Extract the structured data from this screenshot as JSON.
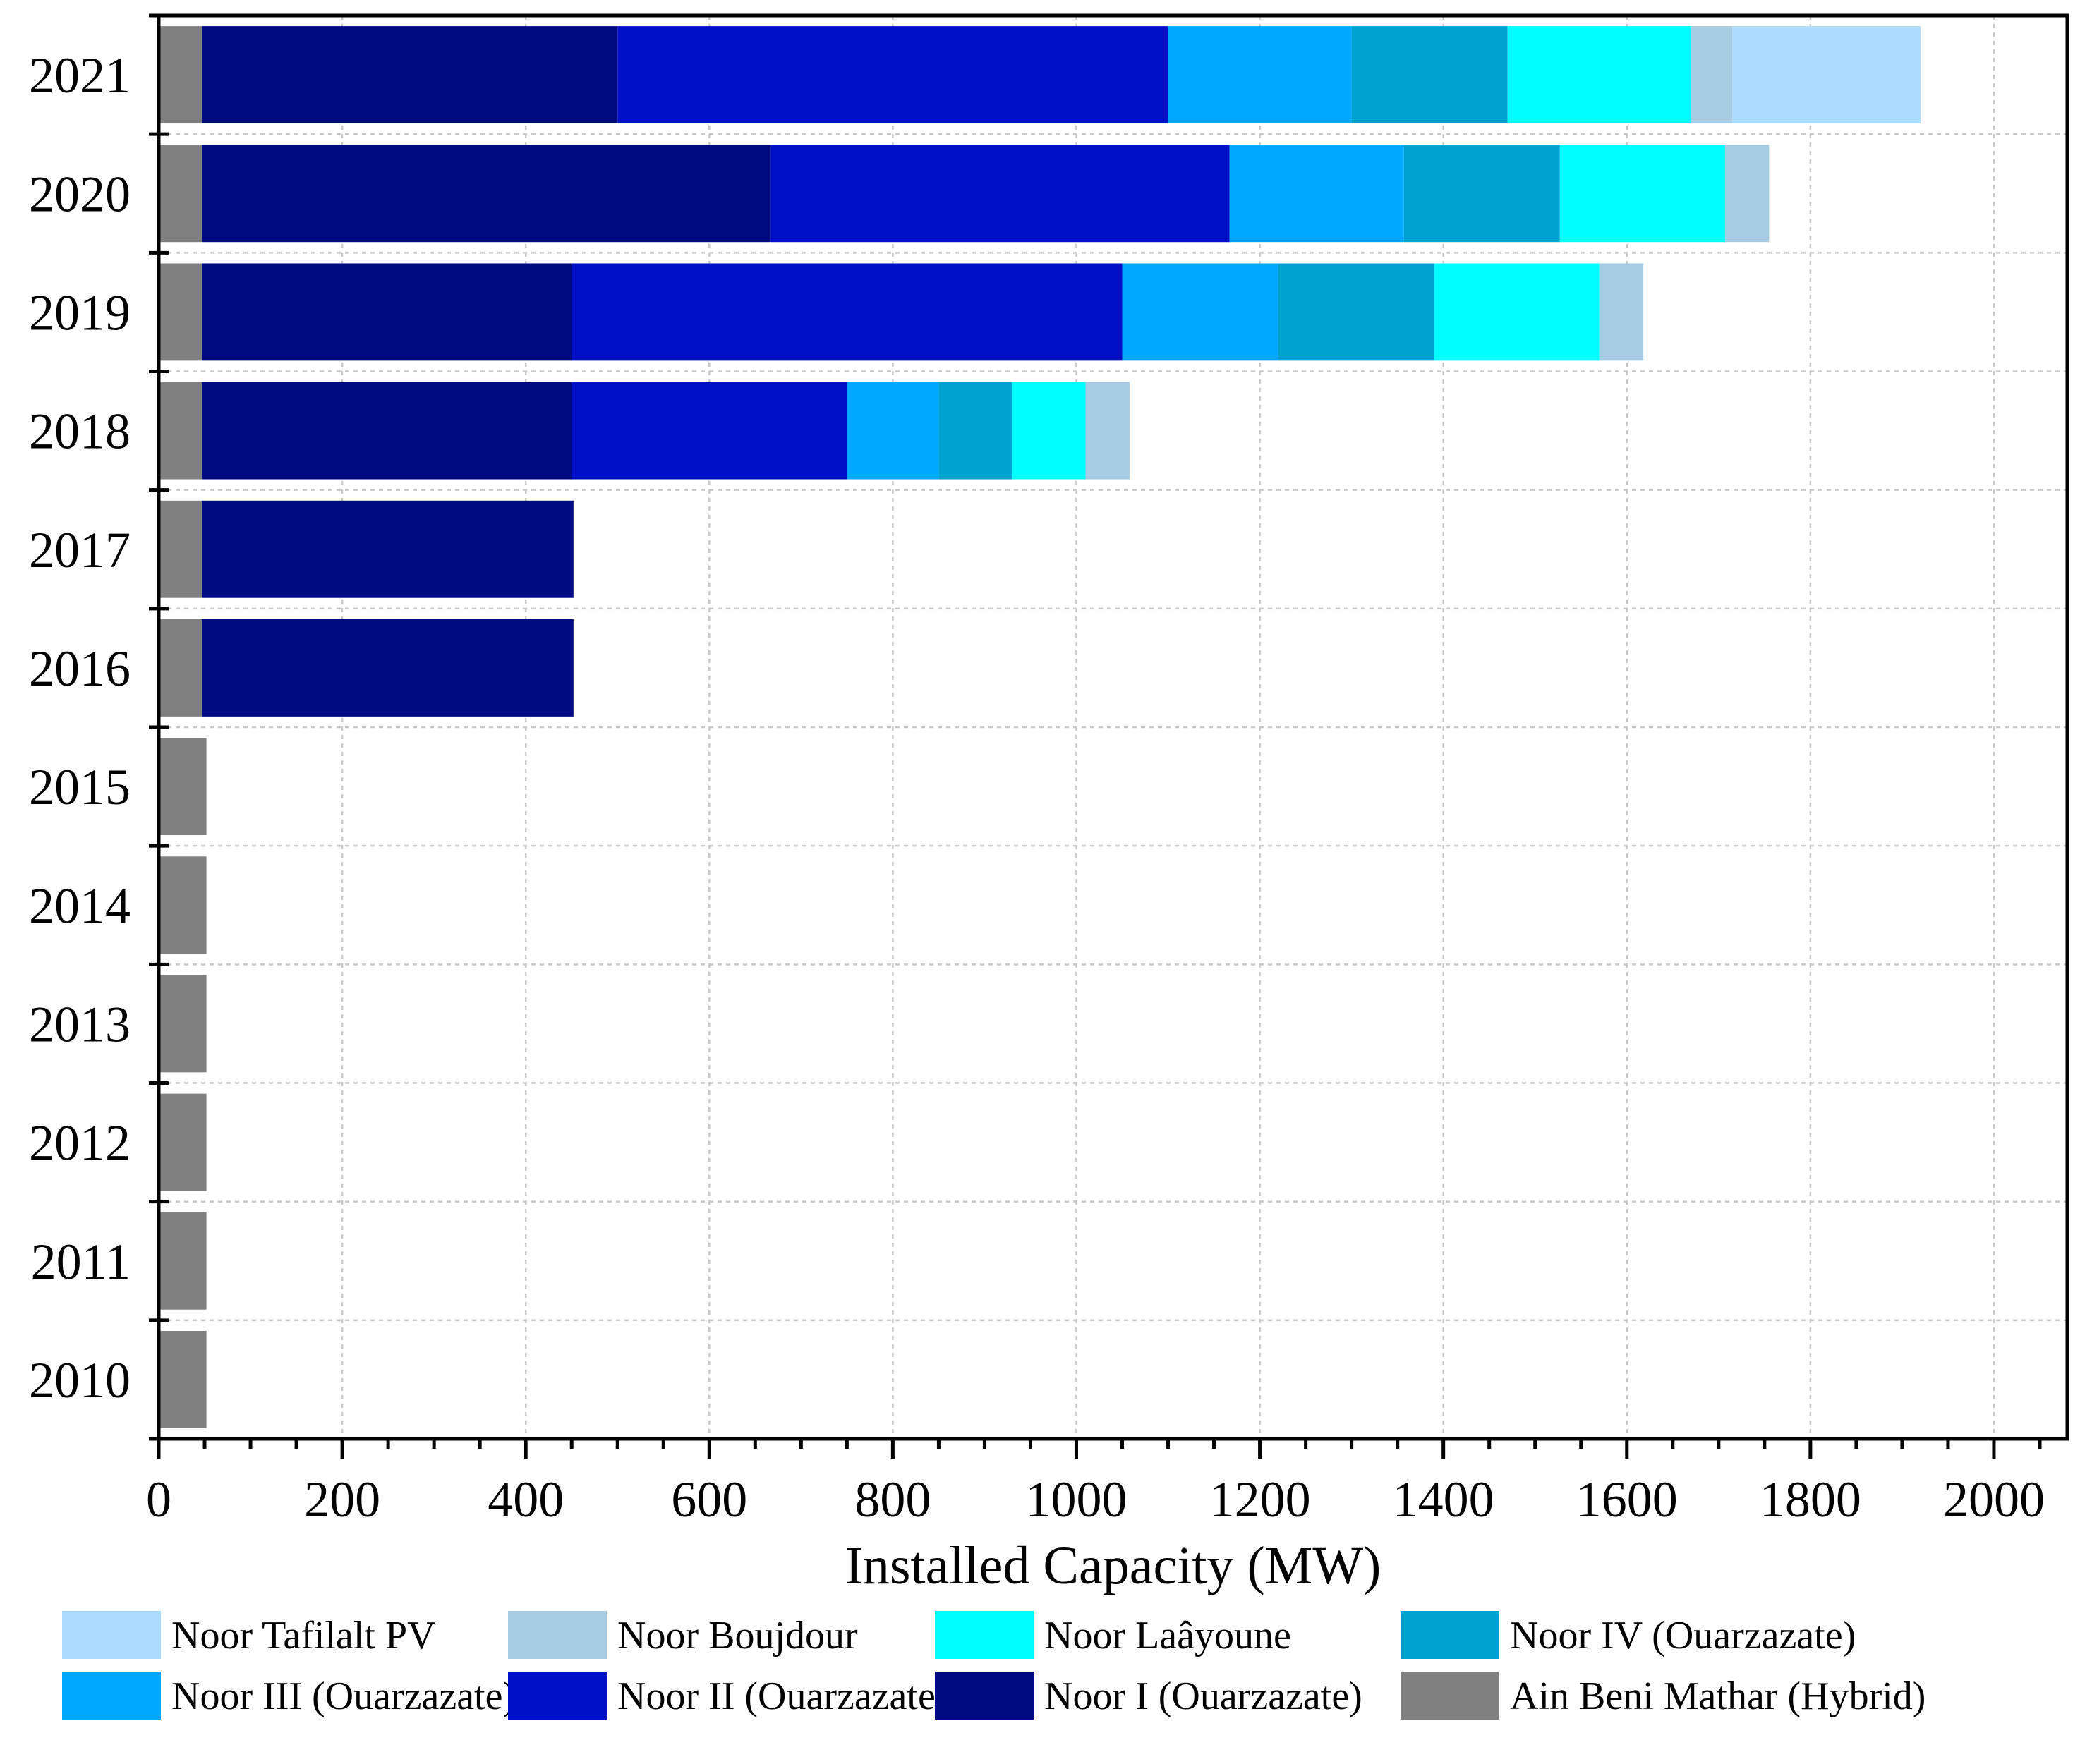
{
  "chart_data": {
    "type": "bar",
    "orientation": "horizontal",
    "stacked": true,
    "title": "",
    "xlabel": "Installed Capacity (MW)",
    "ylabel": "",
    "xlim": [
      0,
      2080
    ],
    "xticks": [
      0,
      200,
      400,
      600,
      800,
      1000,
      1200,
      1400,
      1600,
      1800,
      2000
    ],
    "grid": true,
    "legend_position": "bottom",
    "categories": [
      "2021",
      "2020",
      "2019",
      "2018",
      "2017",
      "2016",
      "2015",
      "2014",
      "2013",
      "2012",
      "2011",
      "2010"
    ],
    "series": [
      {
        "name": "Ain Beni Mathar (Hybrid)",
        "color": "#808080",
        "values": [
          47,
          47,
          47,
          47,
          47,
          47,
          52,
          52,
          52,
          52,
          52,
          52
        ]
      },
      {
        "name": "Noor I (Ouarzazate)",
        "color": "#000a80",
        "values": [
          453,
          620,
          403,
          403,
          405,
          405,
          0,
          0,
          0,
          0,
          0,
          0
        ]
      },
      {
        "name": "Noor II (Ouarzazate)",
        "color": "#0010c8",
        "values": [
          600,
          500,
          600,
          300,
          0,
          0,
          0,
          0,
          0,
          0,
          0,
          0
        ]
      },
      {
        "name": "Noor III (Ouarzazate)",
        "color": "#00a8ff",
        "values": [
          200,
          190,
          170,
          100,
          0,
          0,
          0,
          0,
          0,
          0,
          0,
          0
        ]
      },
      {
        "name": "Noor IV (Ouarzazate)",
        "color": "#00a3d0",
        "values": [
          170,
          170,
          170,
          80,
          0,
          0,
          0,
          0,
          0,
          0,
          0,
          0
        ]
      },
      {
        "name": "Noor Laâyoune",
        "color": "#00ffff",
        "values": [
          200,
          180,
          180,
          80,
          0,
          0,
          0,
          0,
          0,
          0,
          0,
          0
        ]
      },
      {
        "name": "Noor Boujdour",
        "color": "#a6cbe3",
        "values": [
          45,
          48,
          48,
          48,
          0,
          0,
          0,
          0,
          0,
          0,
          0,
          0
        ]
      },
      {
        "name": "Noor Tafilalt PV",
        "color": "#aadcff",
        "values": [
          205,
          0,
          0,
          0,
          0,
          0,
          0,
          0,
          0,
          0,
          0,
          0
        ]
      }
    ],
    "legend_order": [
      "Noor Tafilalt PV",
      "Noor Boujdour",
      "Noor Laâyoune",
      "Noor IV (Ouarzazate)",
      "Noor III (Ouarzazate)",
      "Noor II (Ouarzazate)",
      "Noor I (Ouarzazate)",
      "Ain Beni Mathar (Hybrid)"
    ]
  }
}
